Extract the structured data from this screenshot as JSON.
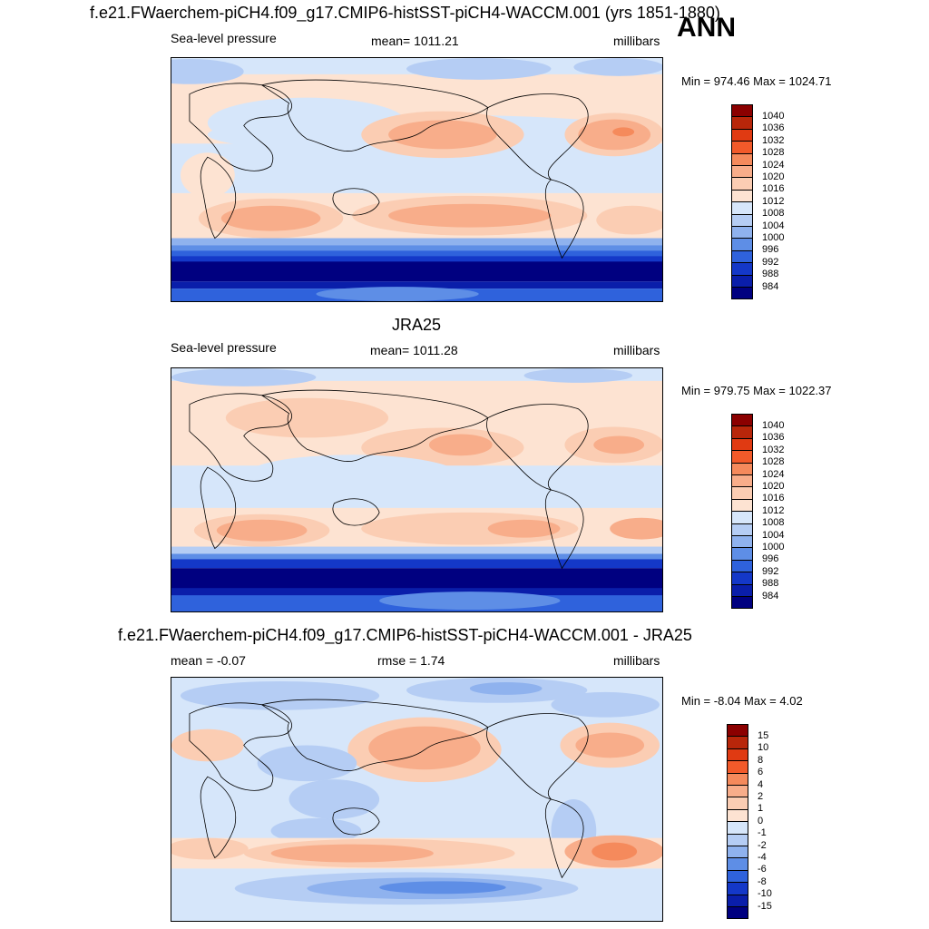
{
  "season": "ANN",
  "panels": [
    {
      "title": "f.e21.FWaerchem-piCH4.f09_g17.CMIP6-histSST-piCH4-WACCM.001 (yrs 1851-1880)",
      "left": "Sea-level pressure",
      "center": "mean= 1011.21",
      "right": "millibars",
      "minmax": "Min = 974.46 Max = 1024.71",
      "levels": [
        "1040",
        "1036",
        "1032",
        "1028",
        "1024",
        "1020",
        "1016",
        "1012",
        "1008",
        "1004",
        "1000",
        "996",
        "992",
        "988",
        "984"
      ]
    },
    {
      "title": "JRA25",
      "left": "Sea-level pressure",
      "center": "mean= 1011.28",
      "right": "millibars",
      "minmax": "Min = 979.75 Max = 1022.37",
      "levels": [
        "1040",
        "1036",
        "1032",
        "1028",
        "1024",
        "1020",
        "1016",
        "1012",
        "1008",
        "1004",
        "1000",
        "996",
        "992",
        "988",
        "984"
      ]
    },
    {
      "title": "f.e21.FWaerchem-piCH4.f09_g17.CMIP6-histSST-piCH4-WACCM.001 - JRA25",
      "left": "mean =  -0.07",
      "center": "rmse =   1.74",
      "right": "millibars",
      "minmax": "Min =  -8.04 Max =   4.02",
      "levels": [
        "15",
        "10",
        "8",
        "6",
        "4",
        "2",
        "1",
        "0",
        "-1",
        "-2",
        "-4",
        "-6",
        "-8",
        "-10",
        "-15"
      ]
    }
  ],
  "colors": {
    "scale": [
      "#8b0000",
      "#b8260a",
      "#e03a12",
      "#f25a2a",
      "#f58a5c",
      "#f8ad8a",
      "#fbcdb3",
      "#fde3d2",
      "#d6e6fa",
      "#b5cdf4",
      "#8fb2ee",
      "#5e8ee6",
      "#2f62dc",
      "#1438c8",
      "#0a1eaa",
      "#000080"
    ],
    "land_outline": "#000000"
  }
}
